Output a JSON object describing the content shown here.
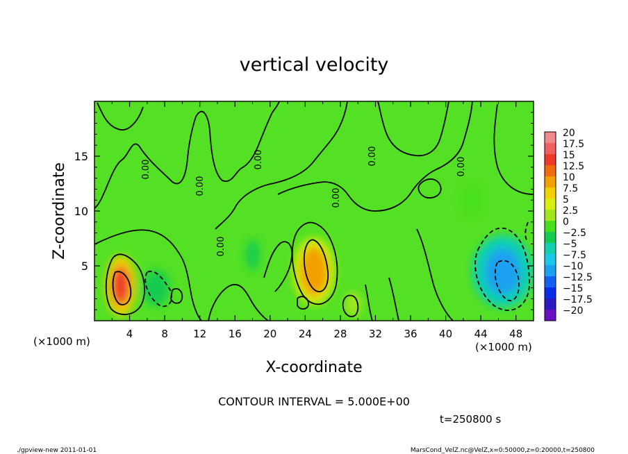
{
  "chart_data": {
    "type": "heatmap",
    "title": "vertical velocity",
    "xlabel": "X-coordinate",
    "ylabel": "Z-coordinate",
    "x_unit_left": "(×1000 m)",
    "x_unit_right": "(×1000 m)",
    "xlim": [
      0,
      50
    ],
    "ylim": [
      0,
      20
    ],
    "xticks": [
      "4",
      "8",
      "12",
      "16",
      "20",
      "24",
      "28",
      "32",
      "36",
      "40",
      "44",
      "48"
    ],
    "yticks": [
      "5",
      "10",
      "15"
    ],
    "colorbar_labels": [
      "20",
      "17.5",
      "15",
      "12.5",
      "10",
      "7.5",
      "5",
      "2.5",
      "0",
      "−2.5",
      "−5",
      "−7.5",
      "−10",
      "−12.5",
      "−15",
      "−17.5",
      "−20"
    ],
    "colorbar_colors": [
      "#f08a8a",
      "#f06060",
      "#ee3a2a",
      "#f06a10",
      "#f2a000",
      "#f2d000",
      "#d8ee10",
      "#a0e81a",
      "#48e01a",
      "#14cc50",
      "#10d0b0",
      "#18c8e8",
      "#1aa0f0",
      "#1460f0",
      "#0a2ce8",
      "#2a18c0",
      "#6a10c0"
    ],
    "contour_label": "0.00",
    "contour_interval_text": "CONTOUR INTERVAL = 5.000E+00",
    "time_text": "t=250800 s",
    "features": [
      {
        "x": 3.0,
        "z": 3.2,
        "value": 15
      },
      {
        "x": 7.0,
        "z": 3.0,
        "value": -5
      },
      {
        "x": 25.0,
        "z": 4.5,
        "value": 10
      },
      {
        "x": 18.0,
        "z": 6.0,
        "value": -3
      },
      {
        "x": 46.5,
        "z": 4.5,
        "value": -10
      },
      {
        "x": 43.0,
        "z": 11.0,
        "value": -2
      },
      {
        "x": 29.5,
        "z": 1.5,
        "value": 3
      }
    ]
  },
  "footer": {
    "left": "./gpview-new  2011-01-01",
    "right": "MarsCond_VelZ.nc@VelZ,x=0:50000,z=0:20000,t=250800"
  }
}
